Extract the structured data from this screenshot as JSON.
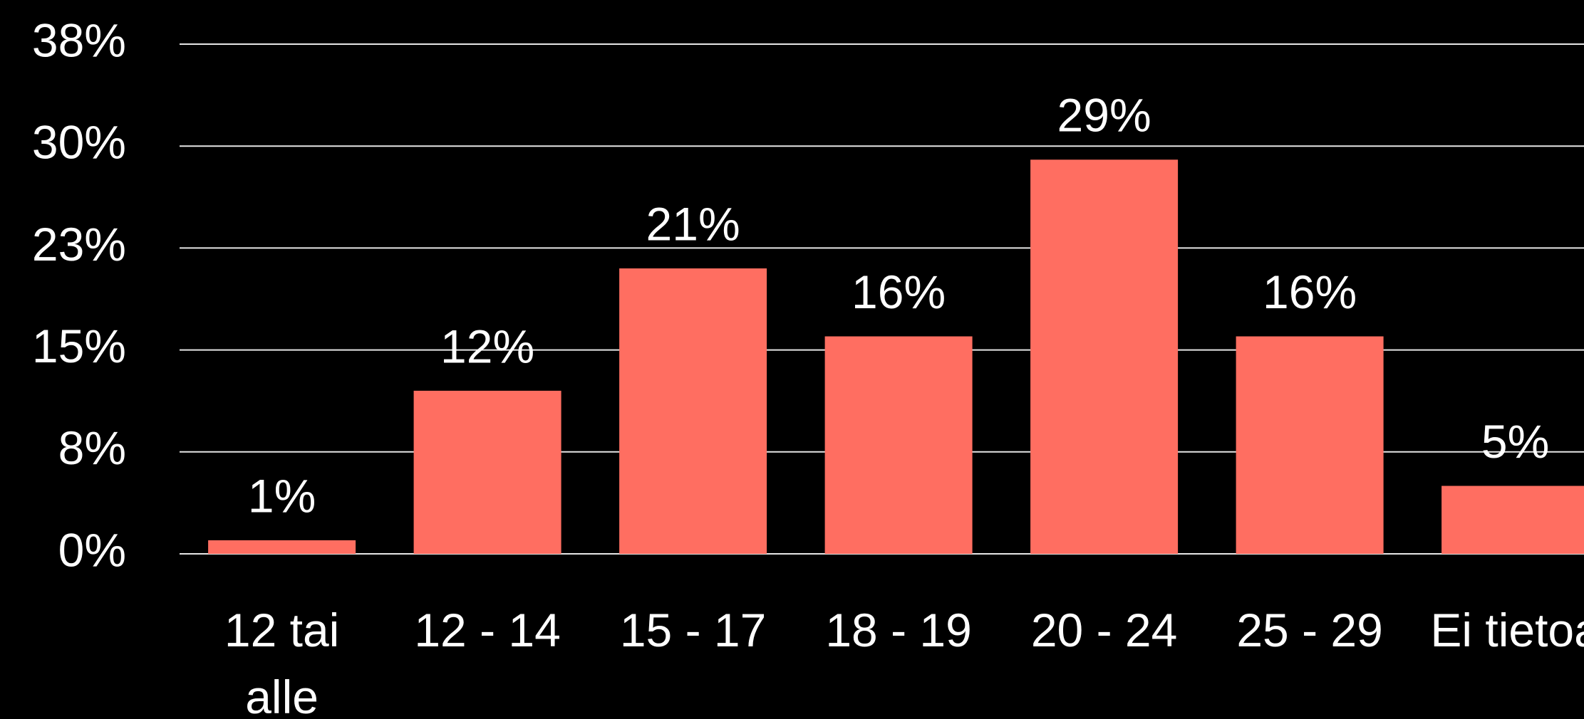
{
  "chart_data": {
    "type": "bar",
    "categories": [
      "12 tai alle",
      "12 - 14",
      "15 - 17",
      "18 - 19",
      "20 - 24",
      "25 - 29",
      "Ei tietoa"
    ],
    "values": [
      1,
      12,
      21,
      16,
      29,
      16,
      5
    ],
    "value_labels": [
      "1%",
      "12%",
      "21%",
      "16%",
      "29%",
      "16%",
      "5%"
    ],
    "color": "#ff6e61",
    "ylim": [
      0,
      37.5
    ],
    "yticks": [
      {
        "value": 0,
        "label": "0%"
      },
      {
        "value": 7.5,
        "label": "8%"
      },
      {
        "value": 15,
        "label": "15%"
      },
      {
        "value": 22.5,
        "label": "23%"
      },
      {
        "value": 30,
        "label": "30%"
      },
      {
        "value": 37.5,
        "label": "38%"
      }
    ],
    "grid": true
  }
}
